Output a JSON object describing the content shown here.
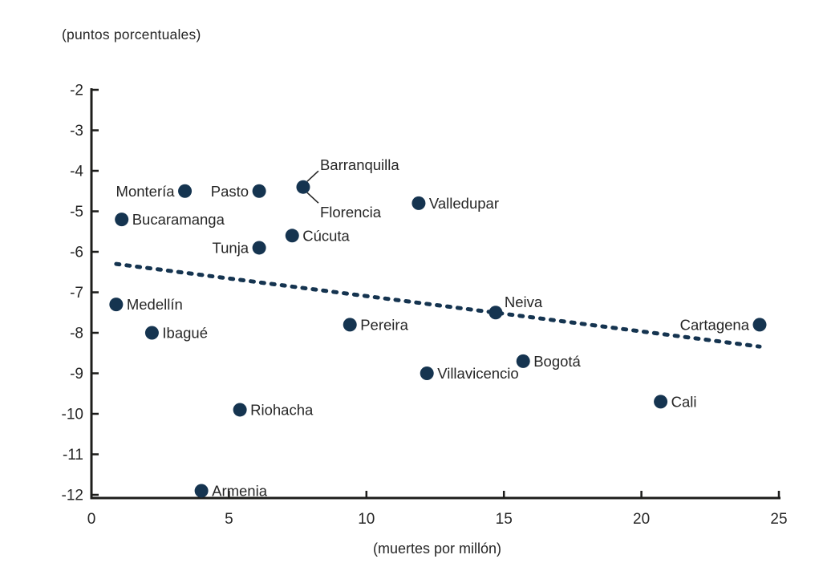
{
  "title": "(puntos porcentuales)",
  "chart_data": {
    "type": "scatter",
    "title": "(puntos porcentuales)",
    "xlabel": "(muertes por millón)",
    "ylabel": "(puntos porcentuales)",
    "xlim": [
      0,
      25
    ],
    "ylim": [
      -12,
      -2
    ],
    "x_ticks": [
      0,
      5,
      10,
      15,
      20,
      25
    ],
    "y_ticks": [
      -2,
      -3,
      -4,
      -5,
      -6,
      -7,
      -8,
      -9,
      -10,
      -11,
      -12
    ],
    "grid": false,
    "legend": "none",
    "colors": {
      "marker": "#153450",
      "trend": "#153450",
      "text": "#262626",
      "axis": "#1d1d1b"
    },
    "points": [
      {
        "city": "Montería",
        "x": 3.4,
        "y": -4.5,
        "label_side": "left"
      },
      {
        "city": "Pasto",
        "x": 6.1,
        "y": -4.5,
        "label_side": "left"
      },
      {
        "city": "Barranquilla",
        "x": 7.7,
        "y": -4.4,
        "label_side": "leader-above"
      },
      {
        "city": "Florencia",
        "x": 7.7,
        "y": -4.4,
        "label_side": "leader-below",
        "marker": false
      },
      {
        "city": "Valledupar",
        "x": 11.9,
        "y": -4.8,
        "label_side": "right"
      },
      {
        "city": "Bucaramanga",
        "x": 1.1,
        "y": -5.2,
        "label_side": "right"
      },
      {
        "city": "Cúcuta",
        "x": 7.3,
        "y": -5.6,
        "label_side": "right"
      },
      {
        "city": "Tunja",
        "x": 6.1,
        "y": -5.9,
        "label_side": "left"
      },
      {
        "city": "Medellín",
        "x": 0.9,
        "y": -7.3,
        "label_side": "right"
      },
      {
        "city": "Neiva",
        "x": 14.7,
        "y": -7.5,
        "label_side": "above-right"
      },
      {
        "city": "Cartagena",
        "x": 24.3,
        "y": -7.8,
        "label_side": "left"
      },
      {
        "city": "Pereira",
        "x": 9.4,
        "y": -7.8,
        "label_side": "right"
      },
      {
        "city": "Ibagué",
        "x": 2.2,
        "y": -8.0,
        "label_side": "right"
      },
      {
        "city": "Bogotá",
        "x": 15.7,
        "y": -8.7,
        "label_side": "right"
      },
      {
        "city": "Villavicencio",
        "x": 12.2,
        "y": -9.0,
        "label_side": "right"
      },
      {
        "city": "Cali",
        "x": 20.7,
        "y": -9.7,
        "label_side": "right"
      },
      {
        "city": "Riohacha",
        "x": 5.4,
        "y": -9.9,
        "label_side": "right"
      },
      {
        "city": "Armenia",
        "x": 4.0,
        "y": -11.9,
        "label_side": "right"
      }
    ],
    "trend_line": {
      "style": "dashed",
      "points": [
        {
          "x": 0.9,
          "y": -6.3
        },
        {
          "x": 24.3,
          "y": -8.34
        }
      ]
    }
  }
}
